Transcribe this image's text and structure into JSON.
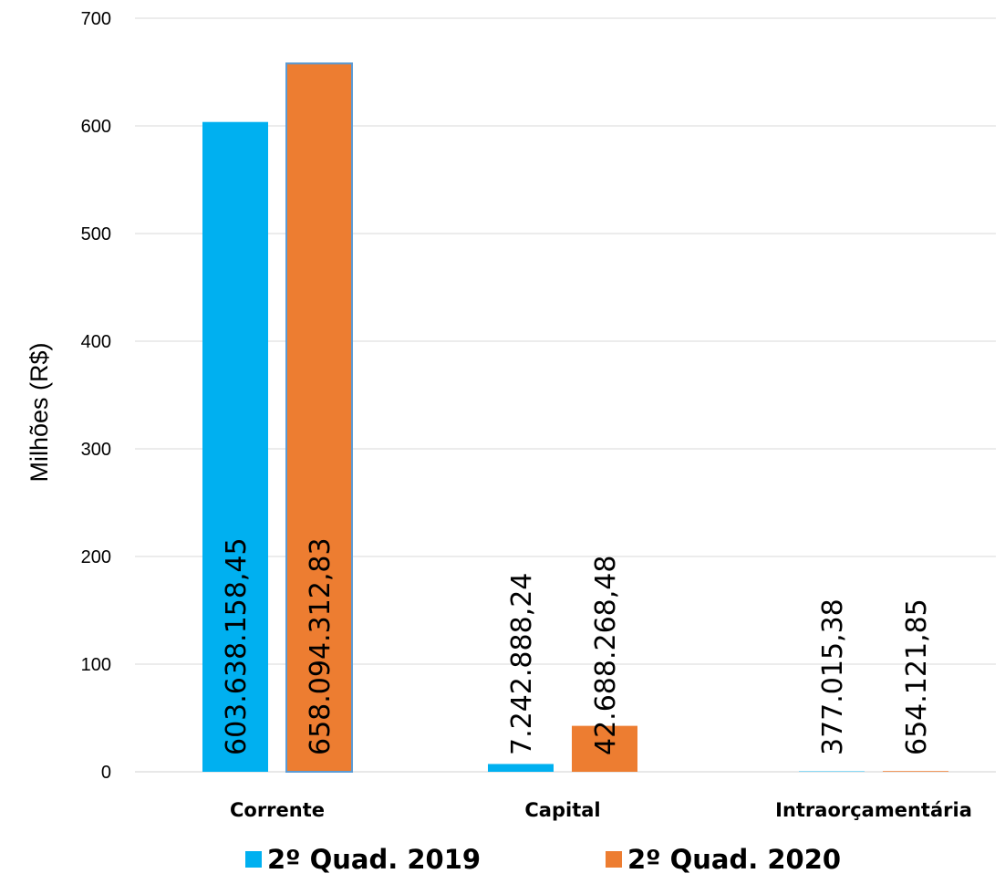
{
  "chart_data": {
    "type": "bar",
    "categories": [
      "Corrente",
      "Capital",
      "Intraorçamentária"
    ],
    "ylabel": "Milhões (R$)",
    "xlabel": "",
    "ylim": [
      0,
      700
    ],
    "yticks": [
      0,
      100,
      200,
      300,
      400,
      500,
      600,
      700
    ],
    "grid": true,
    "legend_position": "bottom",
    "series": [
      {
        "name": "2º Quad. 2019",
        "color": "#00B0F0",
        "values": [
          603.63815845,
          7.24288824,
          0.37701538
        ],
        "labels": [
          "603.638.158,45",
          "7.242.888,24",
          "377.015,38"
        ]
      },
      {
        "name": "2º Quad. 2020",
        "color": "#ED7D31",
        "values": [
          658.09431283,
          42.68826848,
          0.65412185
        ],
        "labels": [
          "658.094.312,83",
          "42.688.268,48",
          "654.121,85"
        ]
      }
    ]
  }
}
